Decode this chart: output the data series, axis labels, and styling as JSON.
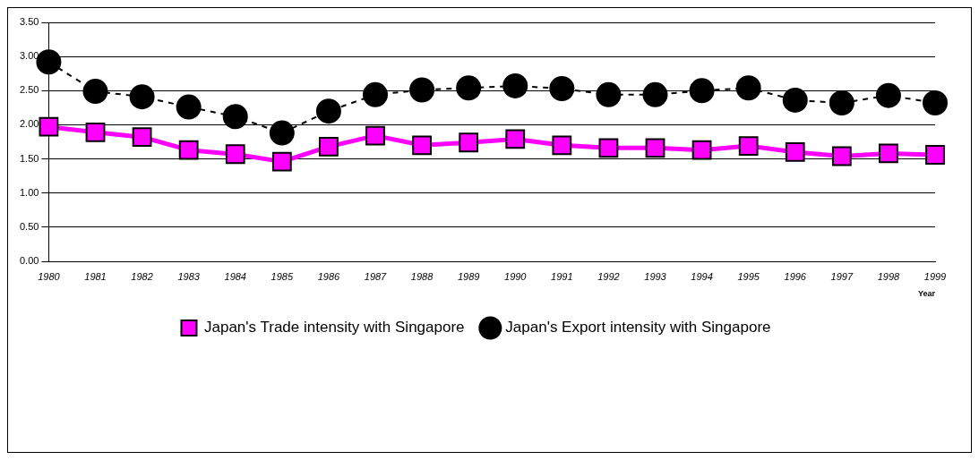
{
  "chart_data": {
    "type": "line",
    "xlabel": "Year",
    "categories": [
      "1980",
      "1981",
      "1982",
      "1983",
      "1984",
      "1985",
      "1986",
      "1987",
      "1988",
      "1989",
      "1990",
      "1991",
      "1992",
      "1993",
      "1994",
      "1995",
      "1996",
      "1997",
      "1998",
      "1999"
    ],
    "series": [
      {
        "name": "Japan's Trade intensity with Singapore",
        "color": "#ff00ff",
        "marker": "square",
        "line_style": "solid",
        "values": [
          1.97,
          1.89,
          1.82,
          1.63,
          1.57,
          1.46,
          1.68,
          1.84,
          1.7,
          1.74,
          1.79,
          1.7,
          1.66,
          1.66,
          1.63,
          1.69,
          1.6,
          1.54,
          1.58,
          1.56
        ]
      },
      {
        "name": "Japan's Export intensity with Singapore",
        "color": "#000000",
        "marker": "circle",
        "line_style": "dashed",
        "values": [
          2.92,
          2.49,
          2.41,
          2.26,
          2.12,
          1.88,
          2.2,
          2.44,
          2.51,
          2.54,
          2.57,
          2.53,
          2.44,
          2.44,
          2.5,
          2.54,
          2.36,
          2.32,
          2.43,
          2.32
        ]
      }
    ],
    "ylim": [
      0,
      3.5
    ],
    "yticks": [
      {
        "value": 0,
        "label": "0.00"
      },
      {
        "value": 0.5,
        "label": "0.50"
      },
      {
        "value": 1,
        "label": "1.00"
      },
      {
        "value": 1.5,
        "label": "1.50"
      },
      {
        "value": 2,
        "label": "2.00"
      },
      {
        "value": 2.5,
        "label": "2.50"
      },
      {
        "value": 3,
        "label": "3.00"
      },
      {
        "value": 3.5,
        "label": "3.50"
      }
    ],
    "grid": "y",
    "legend": "bottom"
  }
}
